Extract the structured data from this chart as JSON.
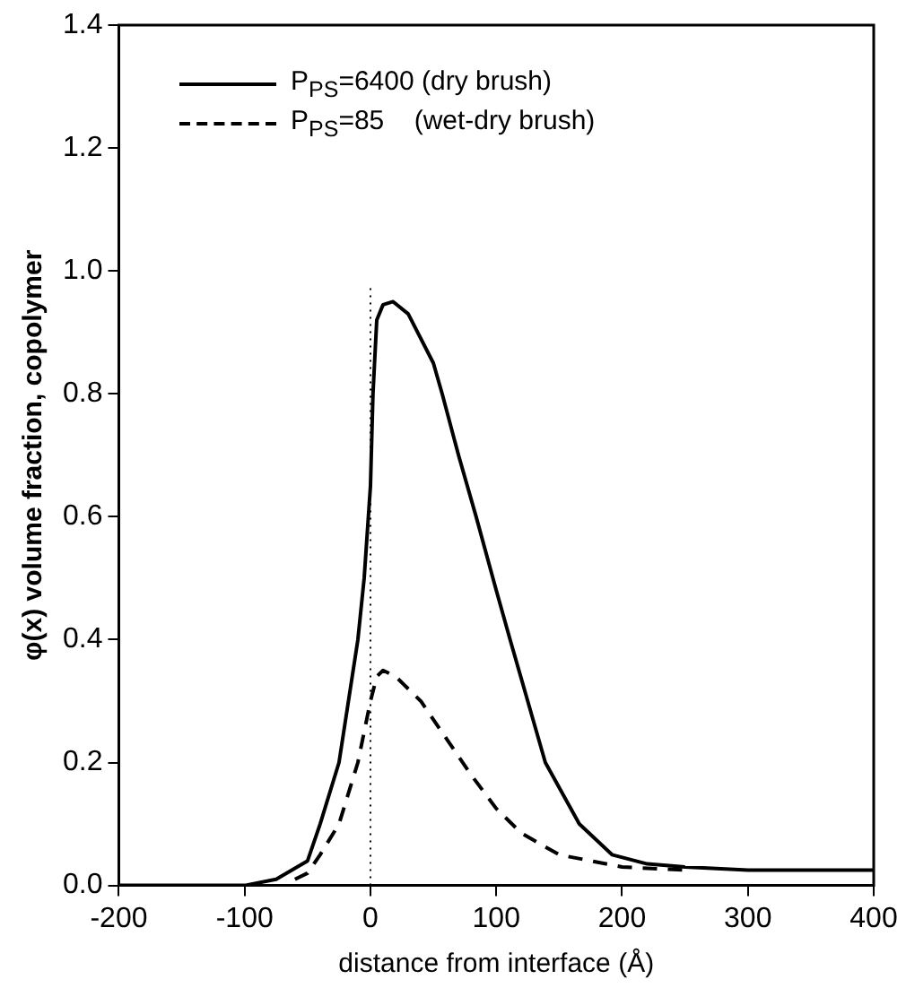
{
  "chart_data": {
    "type": "line",
    "xlabel": "distance from interface (Å)",
    "ylabel": "φ(x) volume fraction, copolymer",
    "xlim": [
      -200,
      400
    ],
    "xticks": [
      -200,
      -100,
      0,
      100,
      200,
      300,
      400
    ],
    "ylim": [
      0,
      1.4
    ],
    "yticks": [
      {
        "value": 0,
        "label": "0.0"
      },
      0.2,
      0.4,
      0.6,
      0.8,
      {
        "value": 1,
        "label": "1.0"
      },
      1.2,
      1.4
    ],
    "grid": false,
    "legend": "top left",
    "marker": "none",
    "ref_lines": [
      {
        "axis": "x",
        "value": 0,
        "line_style": "dotted",
        "color": "#000000"
      }
    ],
    "series": [
      {
        "name": "P$_{PS}$=6400 (dry brush)",
        "color": "#000000",
        "line_style": "solid",
        "x": [
          -200,
          -100,
          -75,
          -50,
          -40,
          -25,
          -10,
          -5,
          0,
          2,
          5,
          10,
          18,
          30,
          50,
          57,
          70,
          84,
          100,
          111,
          125,
          139,
          166,
          192,
          220,
          250,
          300,
          400
        ],
        "values": [
          0,
          0,
          0.01,
          0.04,
          0.1,
          0.2,
          0.4,
          0.5,
          0.65,
          0.8,
          0.92,
          0.945,
          0.95,
          0.93,
          0.85,
          0.8,
          0.7,
          0.6,
          0.48,
          0.4,
          0.3,
          0.2,
          0.1,
          0.05,
          0.035,
          0.03,
          0.025,
          0.025
        ]
      },
      {
        "name": "P$_{PS}$=85    (wet-dry brush)",
        "color": "#000000",
        "line_style": "dashed",
        "x": [
          -60,
          -50,
          -40,
          -25,
          -10,
          0,
          5,
          10,
          20,
          40,
          60,
          80,
          100,
          120,
          150,
          200,
          250
        ],
        "values": [
          0.01,
          0.02,
          0.05,
          0.1,
          0.2,
          0.3,
          0.34,
          0.35,
          0.34,
          0.3,
          0.24,
          0.18,
          0.125,
          0.085,
          0.05,
          0.03,
          0.025
        ]
      }
    ]
  }
}
